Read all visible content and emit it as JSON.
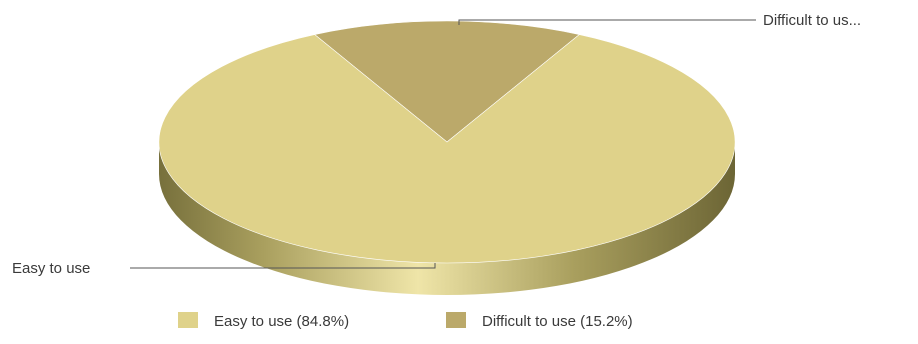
{
  "chart_data": {
    "type": "pie",
    "style": "3d",
    "title": "",
    "slices": [
      {
        "label": "Easy to use",
        "callout": "Easy to use",
        "value": 84.8,
        "legend": "Easy to use (84.8%)",
        "color": "#dfd28a"
      },
      {
        "label": "Difficult to use",
        "callout": "Difficult to us...",
        "value": 15.2,
        "legend": "Difficult to use (15.2%)",
        "color": "#bba96a"
      }
    ],
    "legend_placement": "bottom"
  }
}
